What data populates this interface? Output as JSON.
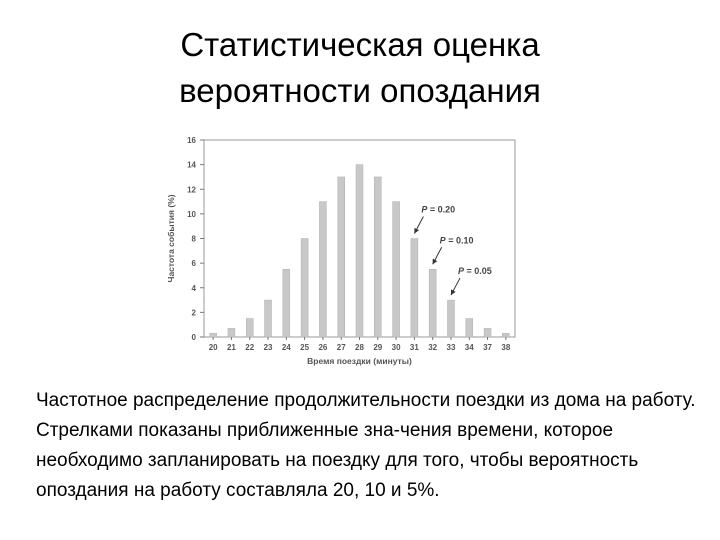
{
  "slide": {
    "title_line1": "Статистическая оценка",
    "title_line2": "вероятности опоздания",
    "caption": "Частотное распределение продолжительности поездки из дома на работу. Стрелками показаны приближенные зна-чения времени, которое необходимо запланировать на поездку для того, чтобы вероятность опоздания на работу составляла 20, 10 и 5%."
  },
  "chart_data": {
    "type": "bar",
    "categories": [
      "20",
      "21",
      "22",
      "23",
      "24",
      "25",
      "26",
      "27",
      "28",
      "29",
      "30",
      "31",
      "32",
      "33",
      "34",
      "37",
      "38"
    ],
    "values": [
      0.3,
      0.7,
      1.5,
      3,
      5.5,
      8,
      11,
      13,
      14,
      13,
      11,
      8,
      5.5,
      3,
      1.5,
      0.7,
      0.3
    ],
    "xlabel": "Время поездки (минуты)",
    "ylabel": "Частота события (%)",
    "ylim": [
      0,
      16
    ],
    "yticks": [
      0,
      2,
      4,
      6,
      8,
      10,
      12,
      14,
      16
    ],
    "grid": false,
    "bar_color": "#c8c8c8",
    "annotations": [
      {
        "prefix": "P",
        "text": " = 0.20",
        "target": "31"
      },
      {
        "prefix": "P",
        "text": " = 0.10",
        "target": "32"
      },
      {
        "prefix": "P",
        "text": " = 0.05",
        "target": "33"
      }
    ]
  }
}
